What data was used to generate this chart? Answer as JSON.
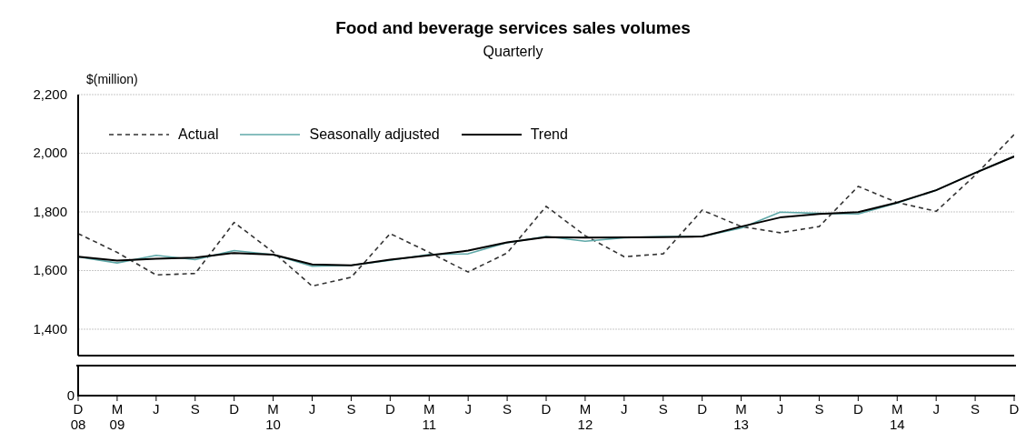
{
  "chart_data": {
    "type": "line",
    "title": "Food and beverage services sales volumes",
    "subtitle": "Quarterly",
    "ylabel": "$(million)",
    "categories": [
      "D\n08",
      "M\n09",
      "J",
      "S",
      "D",
      "M\n10",
      "J",
      "S",
      "D",
      "M\n11",
      "J",
      "S",
      "D",
      "M\n12",
      "J",
      "S",
      "D",
      "M\n13",
      "J",
      "S",
      "D",
      "M\n14",
      "J",
      "S",
      "D"
    ],
    "series": [
      {
        "name": "Actual",
        "color": "#333333",
        "line_style": "dashed",
        "values": [
          1726,
          1662,
          1585,
          1590,
          1764,
          1663,
          1547,
          1577,
          1726,
          1662,
          1595,
          1660,
          1819,
          1719,
          1647,
          1657,
          1806,
          1750,
          1729,
          1750,
          1887,
          1832,
          1802,
          1925,
          2064
        ]
      },
      {
        "name": "Seasonally adjusted",
        "color": "#5fa8a8",
        "line_style": "solid",
        "values": [
          1647,
          1626,
          1652,
          1637,
          1668,
          1654,
          1615,
          1618,
          1635,
          1655,
          1657,
          1695,
          1716,
          1700,
          1712,
          1716,
          1716,
          1745,
          1799,
          1795,
          1793,
          1830,
          1874,
          1933,
          1989
        ]
      },
      {
        "name": "Trend",
        "color": "#000000",
        "line_style": "solid",
        "values": [
          1647,
          1634,
          1640,
          1644,
          1660,
          1654,
          1621,
          1618,
          1637,
          1652,
          1668,
          1696,
          1714,
          1712,
          1713,
          1714,
          1716,
          1750,
          1781,
          1793,
          1799,
          1832,
          1874,
          1933,
          1989
        ]
      }
    ],
    "ylim": [
      1310,
      2200
    ],
    "yticks": [
      {
        "value": 1400,
        "label": "1,400"
      },
      {
        "value": 1600,
        "label": "1,600"
      },
      {
        "value": 1800,
        "label": "1,800"
      },
      {
        "value": 2000,
        "label": "2,000"
      },
      {
        "value": 2200,
        "label": "2,200"
      }
    ],
    "annotations": [
      "0"
    ],
    "grid": "y",
    "legend": "top left",
    "marker": "none"
  }
}
